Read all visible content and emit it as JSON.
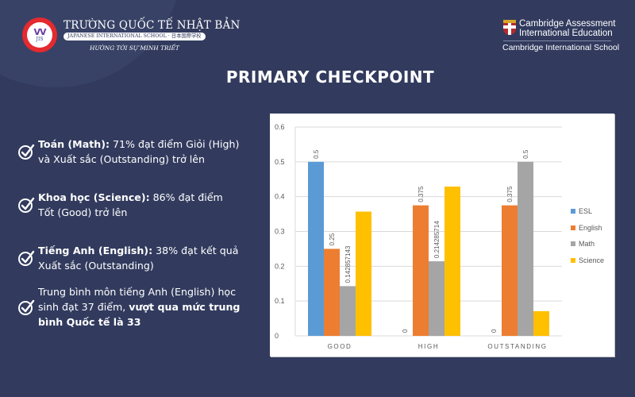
{
  "header": {
    "school_name": "TRƯỜNG QUỐC TẾ NHẬT BẢN",
    "school_subtitle": "JAPANESE INTERNATIONAL SCHOOL · 日本国際学校",
    "school_motto": "HƯỚNG TỚI SỰ MINH TRIẾT",
    "logo_text": "JIS",
    "cambridge_line1": "Cambridge Assessment",
    "cambridge_line2": "International Education",
    "cambridge_school": "Cambridge International School"
  },
  "page_title": "PRIMARY CHECKPOINT",
  "bullets": [
    {
      "bold": "Toán (Math):",
      "rest1": " 71% đạt điểm Giỏi (High)",
      "line2": "và Xuất sắc (Outstanding) trở lên"
    },
    {
      "bold": "Khoa học (Science):",
      "rest1": " 86% đạt điểm",
      "line2": "Tốt (Good) trở lên"
    },
    {
      "bold": "Tiếng Anh (English):",
      "rest1": " 38% đạt kết quả",
      "line2": "Xuất sắc (Outstanding)"
    },
    {
      "line1": "Trung bình môn tiếng Anh (English) học",
      "line2_plain": "sinh đạt 37 điểm, ",
      "line2_bold": "vượt qua mức trung",
      "line3_bold": "bình Quốc tế là 33"
    }
  ],
  "colors": {
    "background": "#323b5e",
    "ESL": "#5b9bd5",
    "English": "#ed7d31",
    "Math": "#a5a5a5",
    "Science": "#ffc000"
  },
  "chart_data": {
    "type": "bar",
    "title": "",
    "xlabel": "",
    "ylabel": "",
    "ylim": [
      0,
      0.6
    ],
    "yticks": [
      "0",
      "0.1",
      "0.2",
      "0.3",
      "0.4",
      "0.5",
      "0.6"
    ],
    "grid": true,
    "legend_position": "right",
    "categories": [
      "GOOD",
      "HIGH",
      "OUTSTANDING"
    ],
    "series": [
      {
        "name": "ESL",
        "values": [
          0.5,
          0,
          0
        ],
        "labels": [
          "0.5",
          "0",
          "0"
        ]
      },
      {
        "name": "English",
        "values": [
          0.25,
          0.375,
          0.375
        ],
        "labels": [
          "0.25",
          "0.375",
          "0.375"
        ]
      },
      {
        "name": "Math",
        "values": [
          0.142857143,
          0.214285714,
          0.5
        ],
        "labels": [
          "0.142857143",
          "0.214285714",
          "0.5"
        ]
      },
      {
        "name": "Science",
        "values": [
          0.357,
          0.429,
          0.071
        ],
        "labels": [
          "",
          "",
          ""
        ]
      }
    ]
  }
}
